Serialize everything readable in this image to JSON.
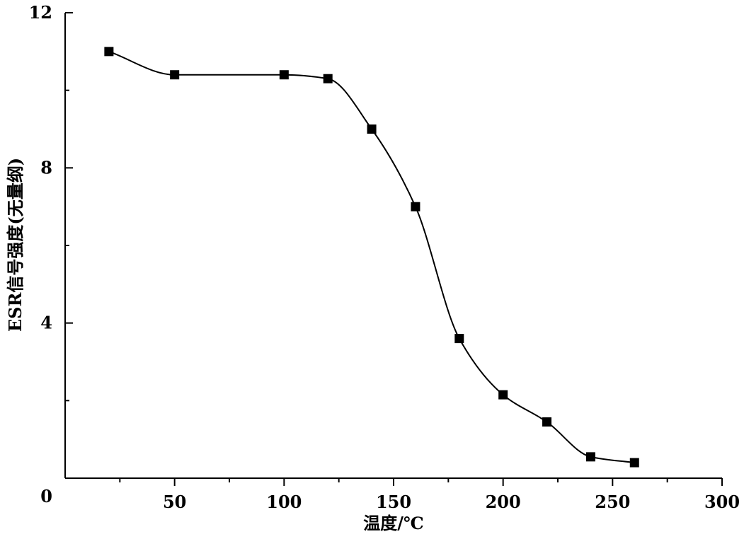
{
  "chart_data": {
    "type": "scatter",
    "xlabel": "温度/℃",
    "ylabel": "ESR信号强度(无量纲)",
    "xlim": [
      0,
      300
    ],
    "ylim": [
      0,
      12
    ],
    "x_ticks": [
      50,
      100,
      150,
      200,
      250,
      300
    ],
    "x_minor_ticks": [
      25,
      75,
      125,
      175,
      225,
      275
    ],
    "y_ticks": [
      0,
      4,
      8,
      12
    ],
    "y_minor_ticks": [
      2,
      6,
      10
    ],
    "x_tick_labels": [
      "50",
      "100",
      "150",
      "200",
      "250",
      "300"
    ],
    "y_tick_labels": [
      "0",
      "4",
      "8",
      "12"
    ],
    "grid": false,
    "legend": "none",
    "marker": "square",
    "fit_line": "smooth",
    "color": "#000000",
    "series": [
      {
        "x": [
          20,
          50,
          100,
          120,
          140,
          160,
          180,
          200,
          220,
          240,
          260
        ],
        "y": [
          11.0,
          10.4,
          10.4,
          10.3,
          9.0,
          7.0,
          3.6,
          2.15,
          1.45,
          0.55,
          0.4
        ]
      }
    ]
  }
}
